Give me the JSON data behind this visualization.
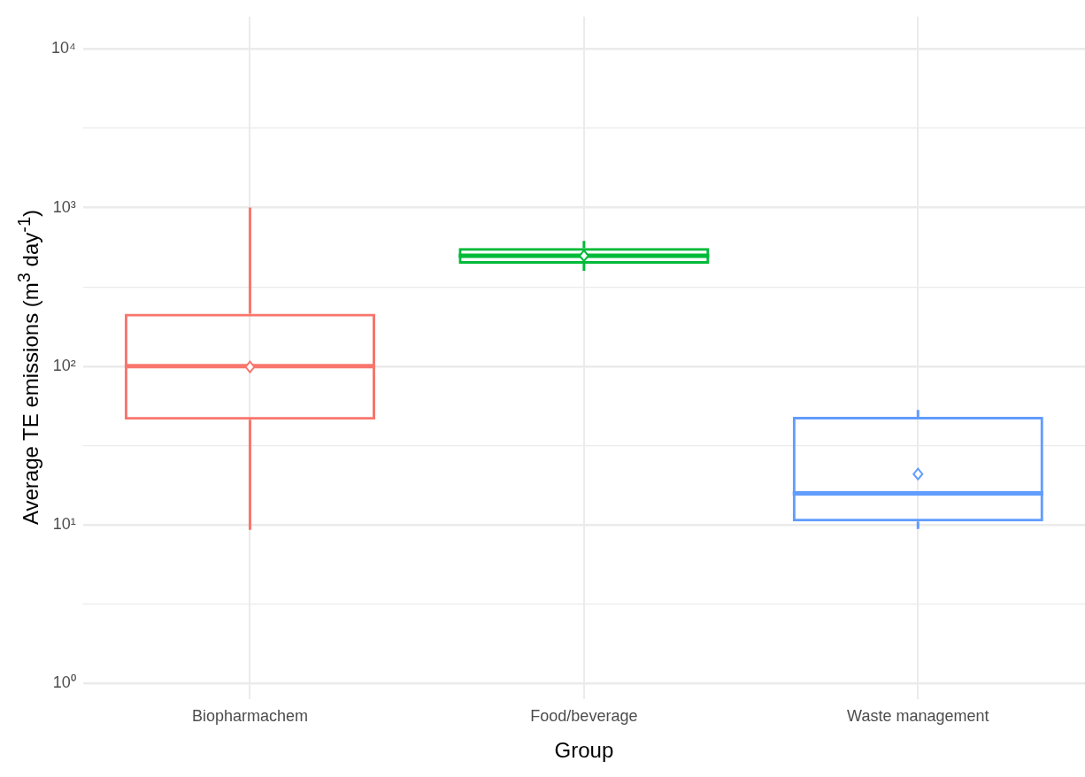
{
  "chart_data": {
    "type": "box",
    "xlabel": "Group",
    "ylabel": "Average TE emissions (m$^{3}$ day$^{-1}$)",
    "categories": [
      "Biopharmachem",
      "Food/beverage",
      "Waste management"
    ],
    "colors": [
      "#f8766d",
      "#00ba38",
      "#619cff"
    ],
    "boxes": [
      {
        "low": 9.3,
        "q1": 46,
        "median": 100,
        "q3": 214,
        "high": 1000,
        "mean": 99
      },
      {
        "low": 400,
        "q1": 443,
        "median": 497,
        "q3": 557,
        "high": 617,
        "mean": 497
      },
      {
        "low": 9.4,
        "q1": 10.5,
        "median": 15.8,
        "q3": 48,
        "high": 53,
        "mean": 20.9
      }
    ],
    "log": "y",
    "ylim": [
      0.8,
      16000
    ],
    "yticks": [
      {
        "value": 1,
        "label": "10⁰"
      },
      {
        "value": 3.16,
        "label": null
      },
      {
        "value": 10,
        "label": "10¹"
      },
      {
        "value": 31.6,
        "label": null
      },
      {
        "value": 100,
        "label": "10²"
      },
      {
        "value": 316,
        "label": null
      },
      {
        "value": 1000,
        "label": "10³"
      },
      {
        "value": 3162,
        "label": null
      },
      {
        "value": 10000,
        "label": "10⁴"
      }
    ],
    "grid": true,
    "legend": false
  }
}
